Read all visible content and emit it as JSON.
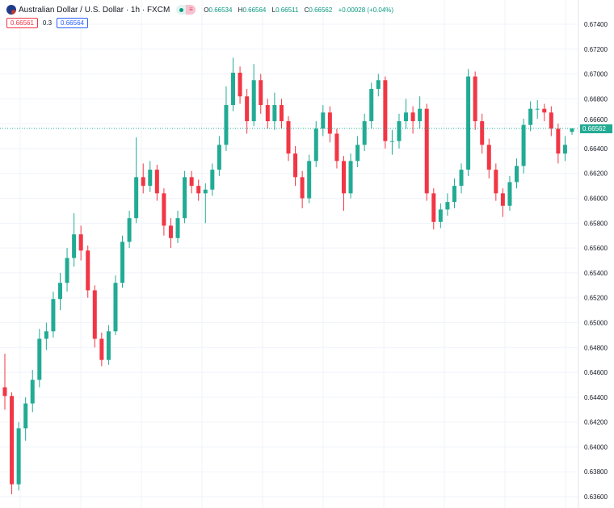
{
  "header": {
    "symbol_title": "Australian Dollar / U.S. Dollar · 1h · FXCM",
    "icon": "aud-usd-flag-icon",
    "ohlc": {
      "o_label": "O",
      "o": "0.66534",
      "h_label": "H",
      "h": "0.66564",
      "l_label": "L",
      "l": "0.66511",
      "c_label": "C",
      "c": "0.66562",
      "change": "+0.00028 (+0.04%)"
    },
    "sell_price": "0.66561",
    "spread": "0.3",
    "buy_price": "0.66564"
  },
  "price_tag": "0.66562",
  "colors": {
    "up": "#22ab94",
    "down": "#f23645",
    "grid": "#f0f3fa",
    "last_price": "#22ab94"
  },
  "chart_data": {
    "type": "candlestick",
    "title": "Australian Dollar / U.S. Dollar · 1h · FXCM",
    "ylim": [
      0.636,
      0.675
    ],
    "yticks": [
      "0.67400",
      "0.67200",
      "0.67000",
      "0.66800",
      "0.66600",
      "0.66400",
      "0.66200",
      "0.66000",
      "0.65800",
      "0.65600",
      "0.65400",
      "0.65200",
      "0.65000",
      "0.64800",
      "0.64600",
      "0.64400",
      "0.64200",
      "0.64000",
      "0.63800",
      "0.63600"
    ],
    "last_price": 0.66562,
    "grid": true,
    "ohlc": [
      [
        0.6448,
        0.6475,
        0.643,
        0.6441
      ],
      [
        0.6441,
        0.6444,
        0.6362,
        0.637
      ],
      [
        0.637,
        0.642,
        0.6365,
        0.6415
      ],
      [
        0.6415,
        0.644,
        0.6405,
        0.6435
      ],
      [
        0.6435,
        0.6462,
        0.6428,
        0.6454
      ],
      [
        0.6454,
        0.6495,
        0.6448,
        0.6487
      ],
      [
        0.6487,
        0.65,
        0.6478,
        0.6493
      ],
      [
        0.6493,
        0.6525,
        0.6488,
        0.6519
      ],
      [
        0.6519,
        0.654,
        0.651,
        0.6532
      ],
      [
        0.6532,
        0.656,
        0.6525,
        0.6552
      ],
      [
        0.6552,
        0.6588,
        0.6545,
        0.6571
      ],
      [
        0.6571,
        0.6578,
        0.655,
        0.6558
      ],
      [
        0.6558,
        0.6562,
        0.652,
        0.6526
      ],
      [
        0.6526,
        0.653,
        0.648,
        0.6487
      ],
      [
        0.6487,
        0.6492,
        0.6465,
        0.647
      ],
      [
        0.647,
        0.6498,
        0.6466,
        0.6493
      ],
      [
        0.6493,
        0.6538,
        0.649,
        0.6532
      ],
      [
        0.6532,
        0.657,
        0.6528,
        0.6565
      ],
      [
        0.6565,
        0.659,
        0.656,
        0.6584
      ],
      [
        0.6584,
        0.6649,
        0.658,
        0.6617
      ],
      [
        0.6617,
        0.6628,
        0.6604,
        0.661
      ],
      [
        0.661,
        0.663,
        0.6605,
        0.6623
      ],
      [
        0.6623,
        0.6627,
        0.6598,
        0.6604
      ],
      [
        0.6604,
        0.6608,
        0.657,
        0.6578
      ],
      [
        0.6578,
        0.6584,
        0.656,
        0.6568
      ],
      [
        0.6568,
        0.659,
        0.6564,
        0.6584
      ],
      [
        0.6584,
        0.6622,
        0.658,
        0.6617
      ],
      [
        0.6617,
        0.6622,
        0.6604,
        0.661
      ],
      [
        0.661,
        0.6615,
        0.6598,
        0.6604
      ],
      [
        0.6604,
        0.6612,
        0.658,
        0.6607
      ],
      [
        0.6607,
        0.6628,
        0.6602,
        0.6623
      ],
      [
        0.6623,
        0.665,
        0.6618,
        0.6643
      ],
      [
        0.6643,
        0.669,
        0.6638,
        0.6675
      ],
      [
        0.6675,
        0.6713,
        0.667,
        0.6701
      ],
      [
        0.6701,
        0.6706,
        0.6676,
        0.6682
      ],
      [
        0.6682,
        0.6688,
        0.6652,
        0.6662
      ],
      [
        0.6662,
        0.6708,
        0.6658,
        0.6695
      ],
      [
        0.6695,
        0.67,
        0.6668,
        0.6675
      ],
      [
        0.6675,
        0.668,
        0.6656,
        0.6662
      ],
      [
        0.6662,
        0.6685,
        0.6655,
        0.6675
      ],
      [
        0.6675,
        0.668,
        0.6656,
        0.6662
      ],
      [
        0.6662,
        0.6666,
        0.663,
        0.6636
      ],
      [
        0.6636,
        0.6642,
        0.661,
        0.6617
      ],
      [
        0.6617,
        0.6622,
        0.6592,
        0.66
      ],
      [
        0.66,
        0.6635,
        0.6596,
        0.663
      ],
      [
        0.663,
        0.6662,
        0.6625,
        0.6656
      ],
      [
        0.6656,
        0.6675,
        0.665,
        0.6669
      ],
      [
        0.6669,
        0.6674,
        0.6645,
        0.6652
      ],
      [
        0.6652,
        0.6656,
        0.6624,
        0.663
      ],
      [
        0.663,
        0.6634,
        0.659,
        0.6604
      ],
      [
        0.6604,
        0.6636,
        0.66,
        0.663
      ],
      [
        0.663,
        0.665,
        0.6625,
        0.6643
      ],
      [
        0.6643,
        0.6668,
        0.6638,
        0.6662
      ],
      [
        0.6662,
        0.6693,
        0.6656,
        0.6688
      ],
      [
        0.6688,
        0.67,
        0.6682,
        0.6695
      ],
      [
        0.6695,
        0.6698,
        0.664,
        0.6646
      ],
      [
        0.6646,
        0.6655,
        0.6635,
        0.6646
      ],
      [
        0.6646,
        0.6668,
        0.664,
        0.6662
      ],
      [
        0.6662,
        0.668,
        0.6656,
        0.6669
      ],
      [
        0.6669,
        0.6674,
        0.6652,
        0.6662
      ],
      [
        0.6662,
        0.6682,
        0.6656,
        0.6672
      ],
      [
        0.6672,
        0.6676,
        0.6598,
        0.6604
      ],
      [
        0.6604,
        0.6608,
        0.6575,
        0.6581
      ],
      [
        0.6581,
        0.6596,
        0.6576,
        0.6591
      ],
      [
        0.6591,
        0.6604,
        0.6586,
        0.6597
      ],
      [
        0.6597,
        0.6616,
        0.6592,
        0.661
      ],
      [
        0.661,
        0.6628,
        0.6604,
        0.6623
      ],
      [
        0.6623,
        0.6704,
        0.6618,
        0.6698
      ],
      [
        0.6698,
        0.6702,
        0.6655,
        0.6662
      ],
      [
        0.6662,
        0.6668,
        0.6636,
        0.6643
      ],
      [
        0.6643,
        0.6648,
        0.6616,
        0.6623
      ],
      [
        0.6623,
        0.6628,
        0.6598,
        0.6604
      ],
      [
        0.6604,
        0.6608,
        0.6585,
        0.6594
      ],
      [
        0.6594,
        0.6618,
        0.659,
        0.6613
      ],
      [
        0.6613,
        0.6632,
        0.6608,
        0.6626
      ],
      [
        0.6626,
        0.6664,
        0.662,
        0.6659
      ],
      [
        0.6659,
        0.6678,
        0.6654,
        0.6672
      ],
      [
        0.6672,
        0.6679,
        0.6664,
        0.6672
      ],
      [
        0.6672,
        0.6676,
        0.6662,
        0.6669
      ],
      [
        0.6669,
        0.6674,
        0.665,
        0.6656
      ],
      [
        0.6656,
        0.666,
        0.6628,
        0.6636
      ],
      [
        0.6636,
        0.665,
        0.663,
        0.6643
      ],
      [
        0.66534,
        0.66564,
        0.66511,
        0.66562
      ]
    ]
  }
}
